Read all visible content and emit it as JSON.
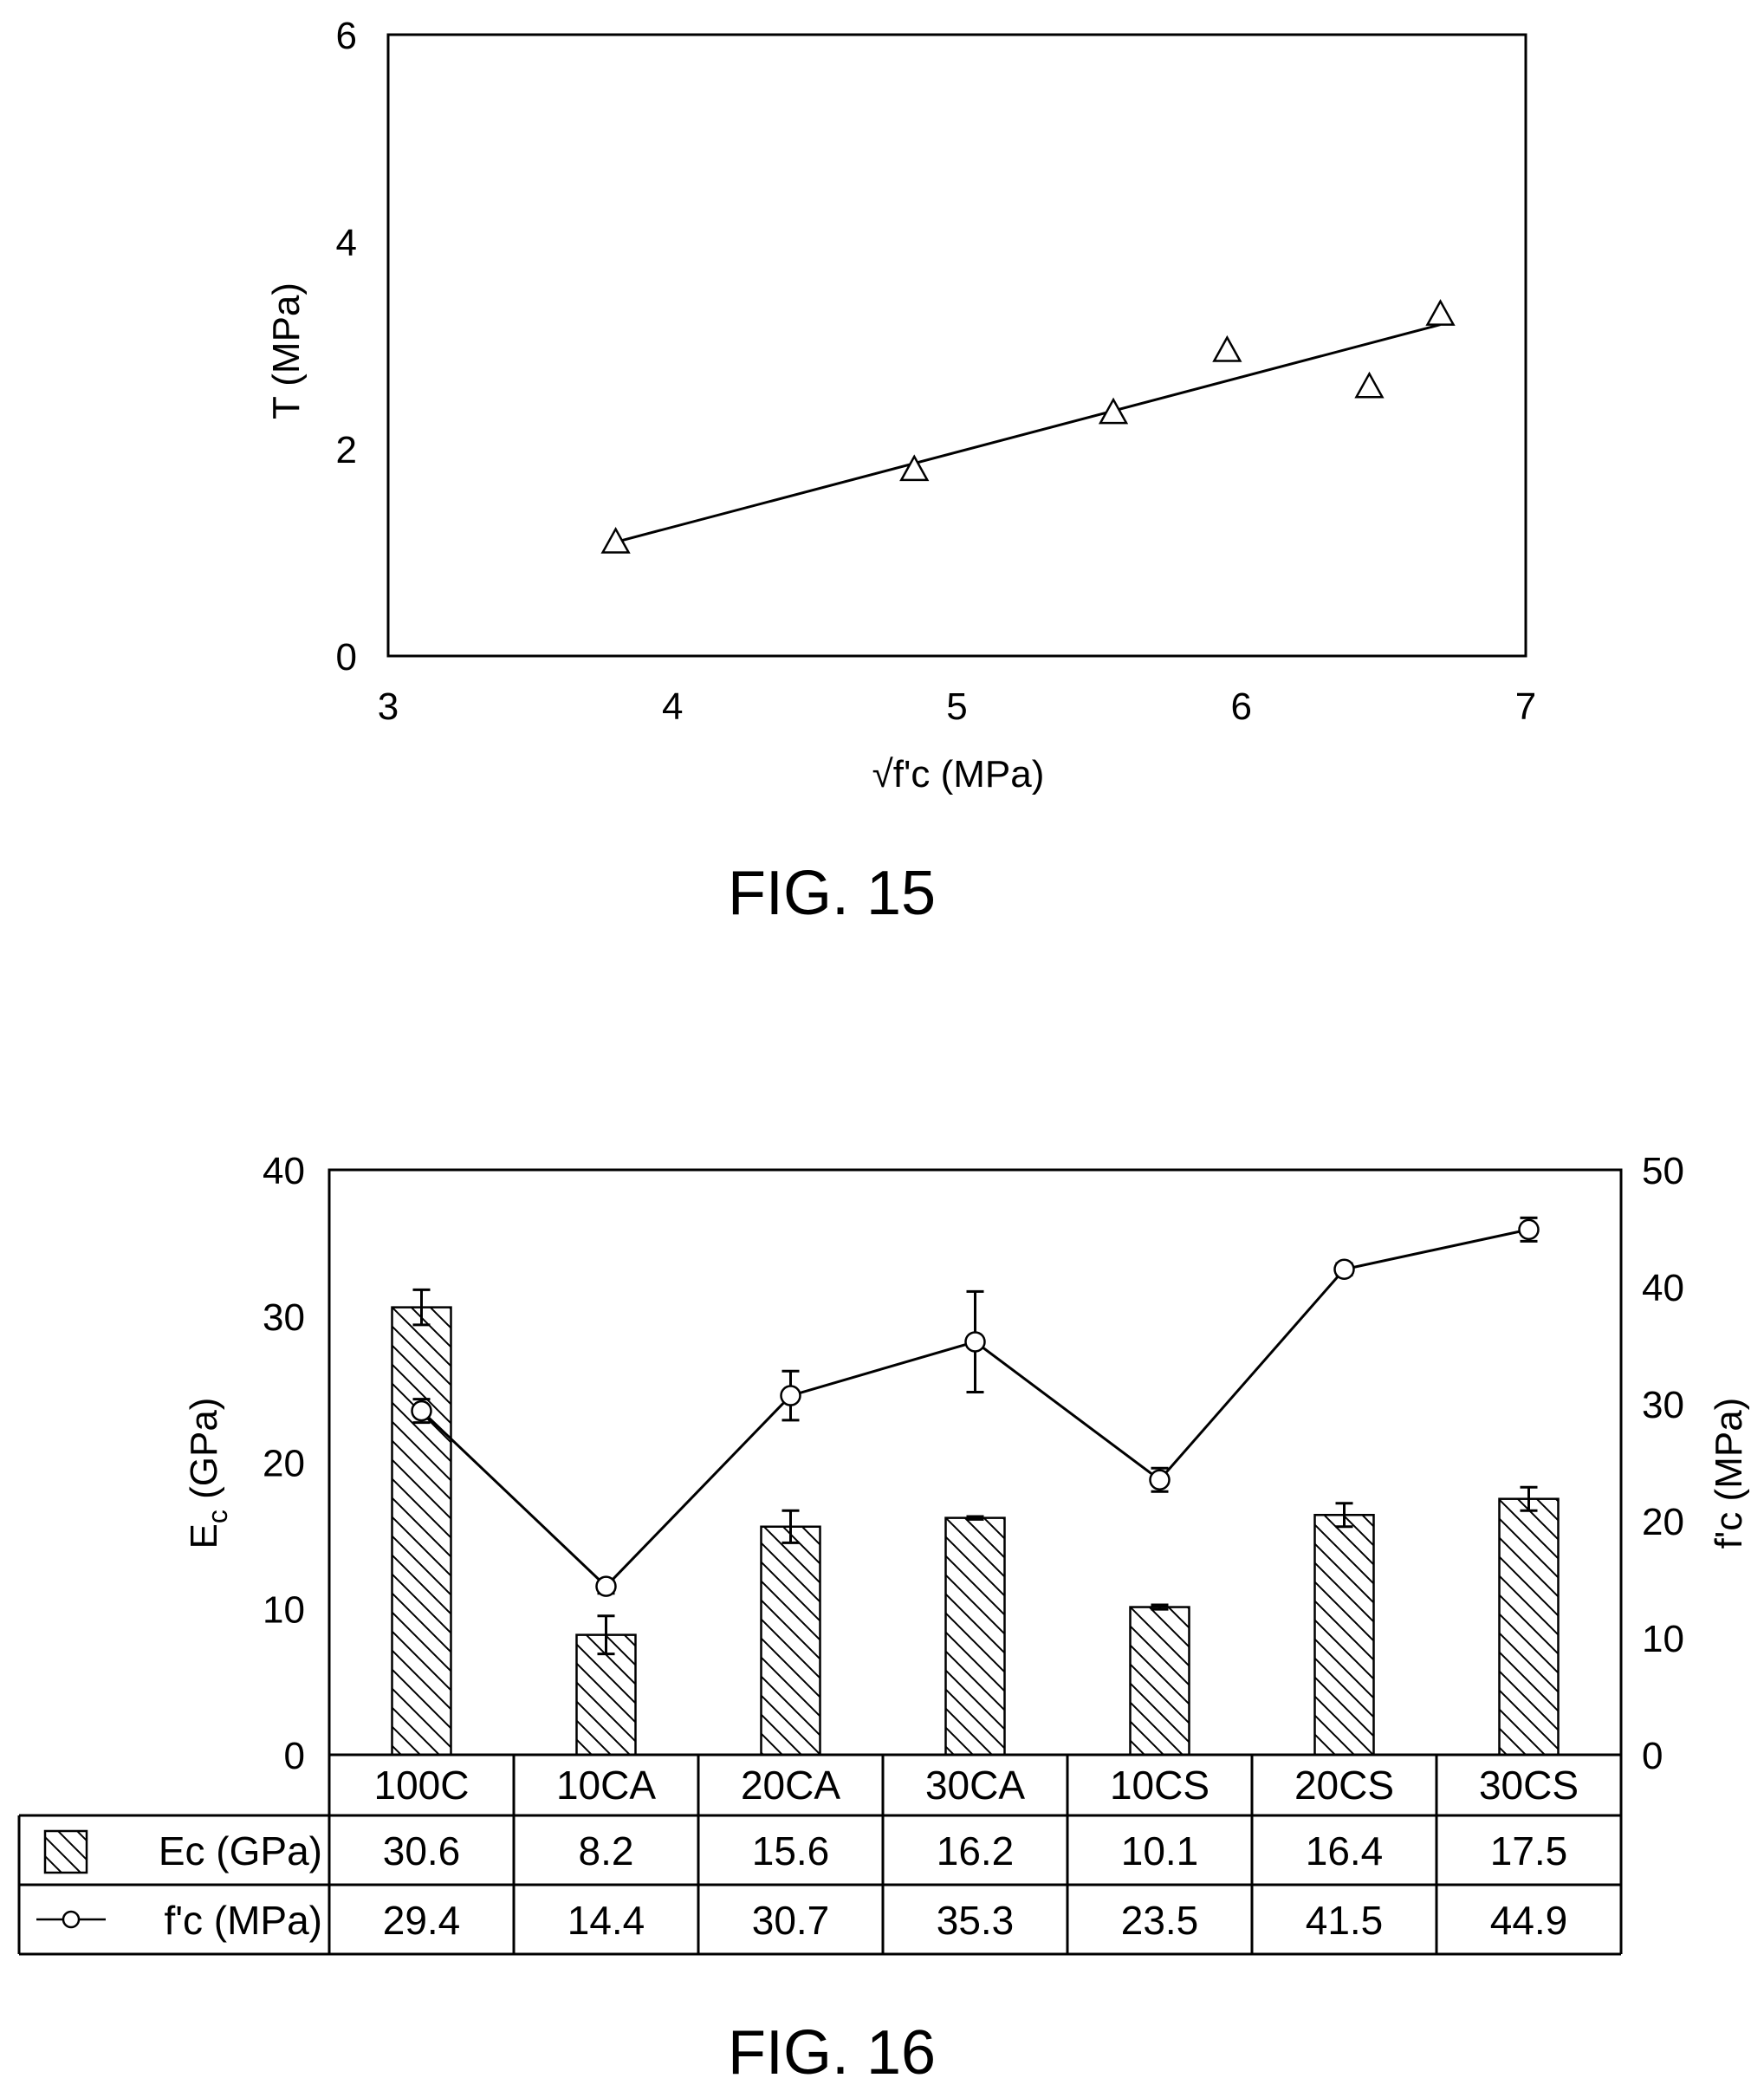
{
  "chart_data": [
    {
      "type": "scatter",
      "figure_caption": "FIG. 15",
      "xlabel": "√f'c (MPa)",
      "ylabel": "T (MPa)",
      "xlim": [
        3,
        7
      ],
      "ylim": [
        0,
        6
      ],
      "x_ticks": [
        "3",
        "4",
        "5",
        "6",
        "7"
      ],
      "y_ticks": [
        "0",
        "2",
        "4",
        "6"
      ],
      "points": [
        {
          "x": 3.8,
          "y": 1.1
        },
        {
          "x": 4.85,
          "y": 1.8
        },
        {
          "x": 5.55,
          "y": 2.35
        },
        {
          "x": 5.95,
          "y": 2.95
        },
        {
          "x": 6.45,
          "y": 2.6
        },
        {
          "x": 6.7,
          "y": 3.3
        }
      ],
      "trendline": [
        {
          "x": 3.8,
          "y": 1.1
        },
        {
          "x": 6.7,
          "y": 3.2
        }
      ],
      "marker": "triangle",
      "grid": false
    },
    {
      "type": "bar",
      "figure_caption": "FIG. 16",
      "categories": [
        "100C",
        "10CA",
        "20CA",
        "30CA",
        "10CS",
        "20CS",
        "30CS"
      ],
      "ylabel_main": "E",
      "ylabel_sub": "c",
      "ylabel_rest": " (GPa)",
      "y2label": "f'c (MPa)",
      "ylim": [
        0,
        40
      ],
      "y2lim": [
        0,
        50
      ],
      "y_ticks": [
        "0",
        "10",
        "20",
        "30",
        "40"
      ],
      "y2_ticks": [
        "0",
        "10",
        "20",
        "30",
        "40",
        "50"
      ],
      "series": [
        {
          "name": "Ec (GPa)",
          "kind": "bar",
          "axis": "left",
          "pattern": "hatched",
          "values": [
            30.6,
            8.2,
            15.6,
            16.2,
            10.1,
            16.4,
            17.5
          ],
          "errors": [
            1.2,
            1.3,
            1.1,
            0.1,
            0.15,
            0.8,
            0.8
          ],
          "labels": [
            "30.6",
            "8.2",
            "15.6",
            "16.2",
            "10.1",
            "16.4",
            "17.5"
          ]
        },
        {
          "name": "f'c (MPa)",
          "kind": "line",
          "axis": "right",
          "marker": "circle",
          "values": [
            29.4,
            14.4,
            30.7,
            35.3,
            23.5,
            41.5,
            44.9
          ],
          "errors": [
            1.0,
            0.6,
            2.1,
            4.3,
            1.0,
            0.5,
            1.0
          ],
          "labels": [
            "29.4",
            "14.4",
            "30.7",
            "35.3",
            "23.5",
            "41.5",
            "44.9"
          ]
        }
      ],
      "data_table": true,
      "grid": false
    }
  ]
}
